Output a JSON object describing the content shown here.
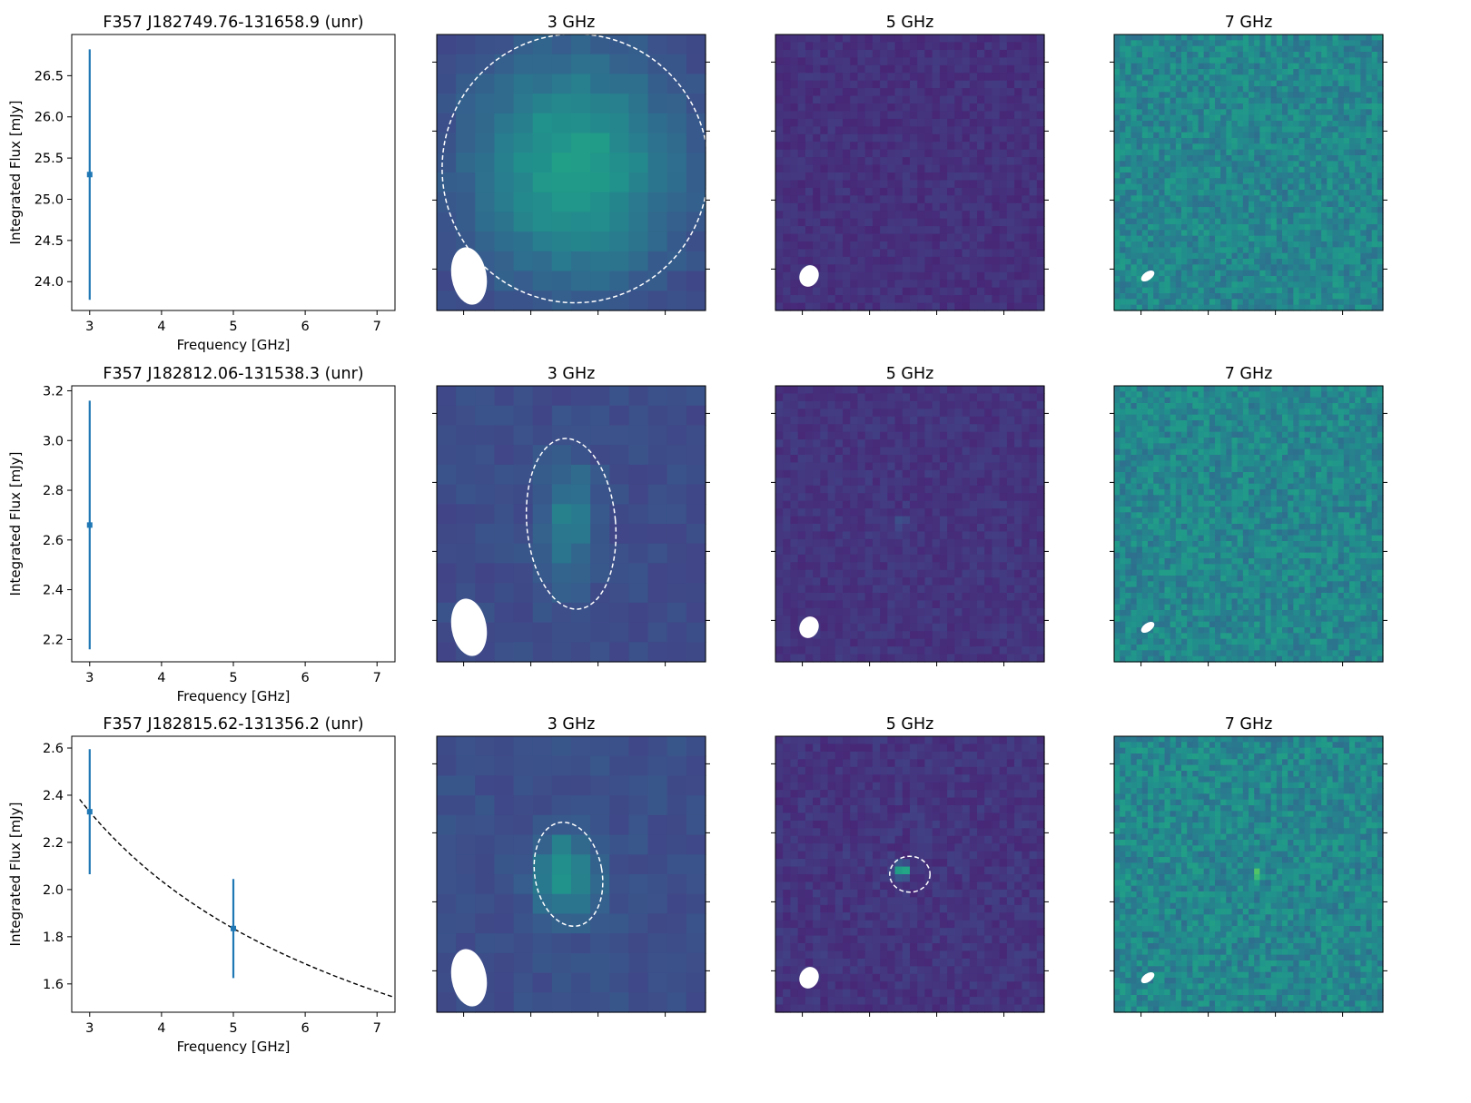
{
  "figure": {
    "colors": {
      "errorbar": "#1f77b4",
      "fit_line": "#000000",
      "ellipse": "#ffffff",
      "frame": "#000000",
      "colormap": "viridis"
    }
  },
  "chart_data": [
    {
      "type": "scatter",
      "title": "F357 J182749.76-131658.9 (unr)",
      "xlabel": "Frequency [GHz]",
      "ylabel": "Integrated Flux [mJy]",
      "xlim": [
        2.75,
        7.25
      ],
      "ylim": [
        23.65,
        27.0
      ],
      "xticks": [
        3,
        4,
        5,
        6,
        7
      ],
      "yticks": [
        24.0,
        24.5,
        25.0,
        25.5,
        26.0,
        26.5
      ],
      "points": [
        {
          "x": 3.0,
          "y": 25.3,
          "err": 1.52
        }
      ],
      "fit": null
    },
    {
      "type": "heatmap",
      "title": "3 GHz",
      "grid": 14,
      "base": 0.2,
      "noise": 0.025,
      "seed": 11,
      "blob": {
        "cx": 7.2,
        "cy": 6.8,
        "sx": 3.8,
        "sy": 4.2,
        "amp": 0.36
      },
      "beam": {
        "cx": 0.12,
        "cy": 0.875,
        "rx": 0.065,
        "ry": 0.105,
        "angle": -10
      },
      "aperture": {
        "cx": 0.515,
        "cy": 0.485,
        "rx": 0.495,
        "ry": 0.487,
        "angle": 0
      }
    },
    {
      "type": "heatmap",
      "title": "5 GHz",
      "grid": 36,
      "base": 0.14,
      "noise": 0.035,
      "seed": 23,
      "blob": null,
      "beam": {
        "cx": 0.125,
        "cy": 0.875,
        "rx": 0.035,
        "ry": 0.04,
        "angle": 25
      },
      "aperture": null
    },
    {
      "type": "heatmap",
      "title": "7 GHz",
      "grid": 48,
      "base": 0.46,
      "noise": 0.095,
      "seed": 37,
      "blob": null,
      "beam": {
        "cx": 0.125,
        "cy": 0.875,
        "rx": 0.028,
        "ry": 0.015,
        "angle": -35
      },
      "aperture": null
    },
    {
      "type": "scatter",
      "title": "F357 J182812.06-131538.3 (unr)",
      "xlabel": "Frequency [GHz]",
      "ylabel": "Integrated Flux [mJy]",
      "xlim": [
        2.75,
        7.25
      ],
      "ylim": [
        2.11,
        3.22
      ],
      "xticks": [
        3,
        4,
        5,
        6,
        7
      ],
      "yticks": [
        2.2,
        2.4,
        2.6,
        2.8,
        3.0,
        3.2
      ],
      "points": [
        {
          "x": 3.0,
          "y": 2.66,
          "err": 0.5
        }
      ],
      "fit": null
    },
    {
      "type": "heatmap",
      "title": "3 GHz",
      "grid": 14,
      "base": 0.23,
      "noise": 0.03,
      "seed": 41,
      "blob": {
        "cx": 6.9,
        "cy": 6.8,
        "sx": 1.0,
        "sy": 2.2,
        "amp": 0.2
      },
      "beam": {
        "cx": 0.12,
        "cy": 0.875,
        "rx": 0.065,
        "ry": 0.105,
        "angle": -10
      },
      "aperture": {
        "cx": 0.5,
        "cy": 0.5,
        "rx": 0.165,
        "ry": 0.31,
        "angle": -5
      }
    },
    {
      "type": "heatmap",
      "title": "5 GHz",
      "grid": 36,
      "base": 0.15,
      "noise": 0.035,
      "seed": 53,
      "blob": {
        "cx": 16.8,
        "cy": 17.8,
        "sx": 0.6,
        "sy": 0.6,
        "amp": 0.12
      },
      "beam": {
        "cx": 0.125,
        "cy": 0.875,
        "rx": 0.035,
        "ry": 0.04,
        "angle": 25
      },
      "aperture": null
    },
    {
      "type": "heatmap",
      "title": "7 GHz",
      "grid": 48,
      "base": 0.46,
      "noise": 0.095,
      "seed": 61,
      "blob": null,
      "beam": {
        "cx": 0.125,
        "cy": 0.875,
        "rx": 0.028,
        "ry": 0.015,
        "angle": -35
      },
      "aperture": null
    },
    {
      "type": "scatter",
      "title": "F357 J182815.62-131356.2 (unr)",
      "xlabel": "Frequency [GHz]",
      "ylabel": "Integrated Flux [mJy]",
      "xlim": [
        2.75,
        7.25
      ],
      "ylim": [
        1.48,
        2.65
      ],
      "xticks": [
        3,
        4,
        5,
        6,
        7
      ],
      "yticks": [
        1.6,
        1.8,
        2.0,
        2.2,
        2.4,
        2.6
      ],
      "points": [
        {
          "x": 3.0,
          "y": 2.33,
          "err": 0.265
        },
        {
          "x": 5.0,
          "y": 1.835,
          "err": 0.21
        }
      ],
      "fit": {
        "x_start": 2.86,
        "x_end": 7.25,
        "y_at_3": 2.33,
        "y_at_5": 1.835
      }
    },
    {
      "type": "heatmap",
      "title": "3 GHz",
      "grid": 14,
      "base": 0.24,
      "noise": 0.03,
      "seed": 71,
      "blob": {
        "cx": 6.7,
        "cy": 7.0,
        "sx": 1.1,
        "sy": 1.4,
        "amp": 0.3
      },
      "beam": {
        "cx": 0.12,
        "cy": 0.875,
        "rx": 0.065,
        "ry": 0.105,
        "angle": -10
      },
      "aperture": {
        "cx": 0.49,
        "cy": 0.5,
        "rx": 0.125,
        "ry": 0.19,
        "angle": -10
      }
    },
    {
      "type": "heatmap",
      "title": "5 GHz",
      "grid": 36,
      "base": 0.15,
      "noise": 0.04,
      "seed": 83,
      "blob": {
        "cx": 17.0,
        "cy": 17.5,
        "sx": 0.6,
        "sy": 0.6,
        "amp": 0.6
      },
      "beam": {
        "cx": 0.125,
        "cy": 0.875,
        "rx": 0.035,
        "ry": 0.04,
        "angle": 25
      },
      "aperture": {
        "cx": 0.5,
        "cy": 0.5,
        "rx": 0.075,
        "ry": 0.065,
        "angle": 0
      }
    },
    {
      "type": "heatmap",
      "title": "7 GHz",
      "grid": 48,
      "base": 0.46,
      "noise": 0.1,
      "seed": 97,
      "blob": {
        "cx": 25.5,
        "cy": 24.0,
        "sx": 0.4,
        "sy": 0.4,
        "amp": 0.5
      },
      "beam": {
        "cx": 0.125,
        "cy": 0.875,
        "rx": 0.028,
        "ry": 0.015,
        "angle": -35
      },
      "aperture": null
    }
  ]
}
